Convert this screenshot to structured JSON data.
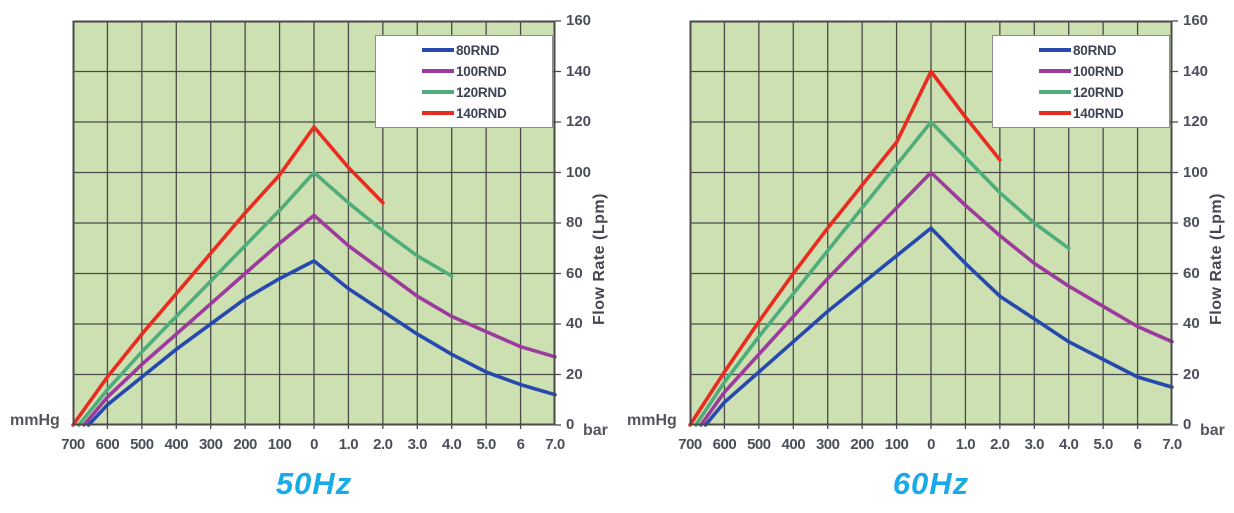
{
  "page": {
    "background": "#ffffff"
  },
  "styles": {
    "plot_background": "#cce0b2",
    "grid_color": "#4a4a4a",
    "axis_text_color": "#4b4f5a",
    "title_color": "#19aae8",
    "legend_border_color": "#8c8c8c"
  },
  "chart_data": [
    {
      "type": "line",
      "title": "50Hz",
      "x_axis": {
        "left_label": "mmHg",
        "right_label": "bar",
        "ticks": [
          "700",
          "600",
          "500",
          "400",
          "300",
          "200",
          "100",
          "0",
          "1.0",
          "2.0",
          "3.0",
          "4.0",
          "5.0",
          "6",
          "7.0"
        ],
        "vacuum_range_mmHg": [
          700,
          0
        ],
        "pressure_range_bar": [
          0,
          7.0
        ]
      },
      "y_axis": {
        "label": "Flow Rate (Lpm)",
        "ticks": [
          "160",
          "140",
          "120",
          "100",
          "80",
          "60",
          "40",
          "20",
          "0"
        ],
        "range": [
          0,
          160
        ],
        "grid": true
      },
      "legend_position": "top-right",
      "series": [
        {
          "name": "80RND",
          "color": "#2749ae",
          "points": [
            [
              -655,
              0
            ],
            [
              -600,
              8
            ],
            [
              -500,
              19
            ],
            [
              -400,
              30
            ],
            [
              -300,
              40
            ],
            [
              -200,
              50
            ],
            [
              -100,
              58
            ],
            [
              0,
              65
            ],
            [
              1,
              54
            ],
            [
              2,
              45
            ],
            [
              3,
              36
            ],
            [
              4,
              28
            ],
            [
              5,
              21
            ],
            [
              6,
              16
            ],
            [
              7,
              12
            ]
          ]
        },
        {
          "name": "100RND",
          "color": "#9c3a9d",
          "points": [
            [
              -668,
              0
            ],
            [
              -600,
              11
            ],
            [
              -500,
              24
            ],
            [
              -400,
              36
            ],
            [
              -300,
              48
            ],
            [
              -200,
              60
            ],
            [
              -100,
              72
            ],
            [
              0,
              83
            ],
            [
              1,
              71
            ],
            [
              2,
              61
            ],
            [
              3,
              51
            ],
            [
              4,
              43
            ],
            [
              5,
              37
            ],
            [
              6,
              31
            ],
            [
              7,
              27
            ]
          ]
        },
        {
          "name": "120RND",
          "color": "#50ad7b",
          "points": [
            [
              -683,
              0
            ],
            [
              -600,
              14
            ],
            [
              -500,
              29
            ],
            [
              -400,
              43
            ],
            [
              -300,
              57
            ],
            [
              -200,
              71
            ],
            [
              -100,
              85
            ],
            [
              0,
              100
            ],
            [
              1,
              88
            ],
            [
              2,
              77
            ],
            [
              3,
              67
            ],
            [
              4,
              59
            ]
          ]
        },
        {
          "name": "140RND",
          "color": "#ea2b20",
          "points": [
            [
              -700,
              0
            ],
            [
              -600,
              19
            ],
            [
              -500,
              36
            ],
            [
              -400,
              52
            ],
            [
              -300,
              68
            ],
            [
              -200,
              84
            ],
            [
              -100,
              99
            ],
            [
              0,
              118
            ],
            [
              1,
              102
            ],
            [
              2,
              88
            ]
          ]
        }
      ]
    },
    {
      "type": "line",
      "title": "60Hz",
      "x_axis": {
        "left_label": "mmHg",
        "right_label": "bar",
        "ticks": [
          "700",
          "600",
          "500",
          "400",
          "300",
          "200",
          "100",
          "0",
          "1.0",
          "2.0",
          "3.0",
          "4.0",
          "5.0",
          "6",
          "7.0"
        ],
        "vacuum_range_mmHg": [
          700,
          0
        ],
        "pressure_range_bar": [
          0,
          7.0
        ]
      },
      "y_axis": {
        "label": "Flow Rate (Lpm)",
        "ticks": [
          "160",
          "140",
          "120",
          "100",
          "80",
          "60",
          "40",
          "20",
          "0"
        ],
        "range": [
          0,
          160
        ],
        "grid": true
      },
      "legend_position": "top-right",
      "series": [
        {
          "name": "80RND",
          "color": "#2749ae",
          "points": [
            [
              -655,
              0
            ],
            [
              -600,
              9
            ],
            [
              -500,
              21
            ],
            [
              -400,
              33
            ],
            [
              -300,
              45
            ],
            [
              -200,
              56
            ],
            [
              -100,
              67
            ],
            [
              0,
              78
            ],
            [
              1,
              64
            ],
            [
              2,
              51
            ],
            [
              3,
              42
            ],
            [
              4,
              33
            ],
            [
              5,
              26
            ],
            [
              6,
              19
            ],
            [
              7,
              15
            ]
          ]
        },
        {
          "name": "100RND",
          "color": "#9c3a9d",
          "points": [
            [
              -668,
              0
            ],
            [
              -600,
              13
            ],
            [
              -500,
              28
            ],
            [
              -400,
              43
            ],
            [
              -300,
              58
            ],
            [
              -200,
              72
            ],
            [
              -100,
              86
            ],
            [
              0,
              100
            ],
            [
              1,
              87
            ],
            [
              2,
              75
            ],
            [
              3,
              64
            ],
            [
              4,
              55
            ],
            [
              5,
              47
            ],
            [
              6,
              39
            ],
            [
              7,
              33
            ]
          ]
        },
        {
          "name": "120RND",
          "color": "#50ad7b",
          "points": [
            [
              -683,
              0
            ],
            [
              -600,
              17
            ],
            [
              -500,
              35
            ],
            [
              -400,
              52
            ],
            [
              -300,
              69
            ],
            [
              -200,
              86
            ],
            [
              -100,
              103
            ],
            [
              0,
              120
            ],
            [
              1,
              106
            ],
            [
              2,
              92
            ],
            [
              3,
              80
            ],
            [
              4,
              70
            ]
          ]
        },
        {
          "name": "140RND",
          "color": "#ea2b20",
          "points": [
            [
              -700,
              0
            ],
            [
              -600,
              21
            ],
            [
              -500,
              41
            ],
            [
              -400,
              60
            ],
            [
              -300,
              78
            ],
            [
              -200,
              95
            ],
            [
              -100,
              112
            ],
            [
              0,
              140
            ],
            [
              1,
              122
            ],
            [
              2,
              105
            ]
          ]
        }
      ]
    }
  ]
}
